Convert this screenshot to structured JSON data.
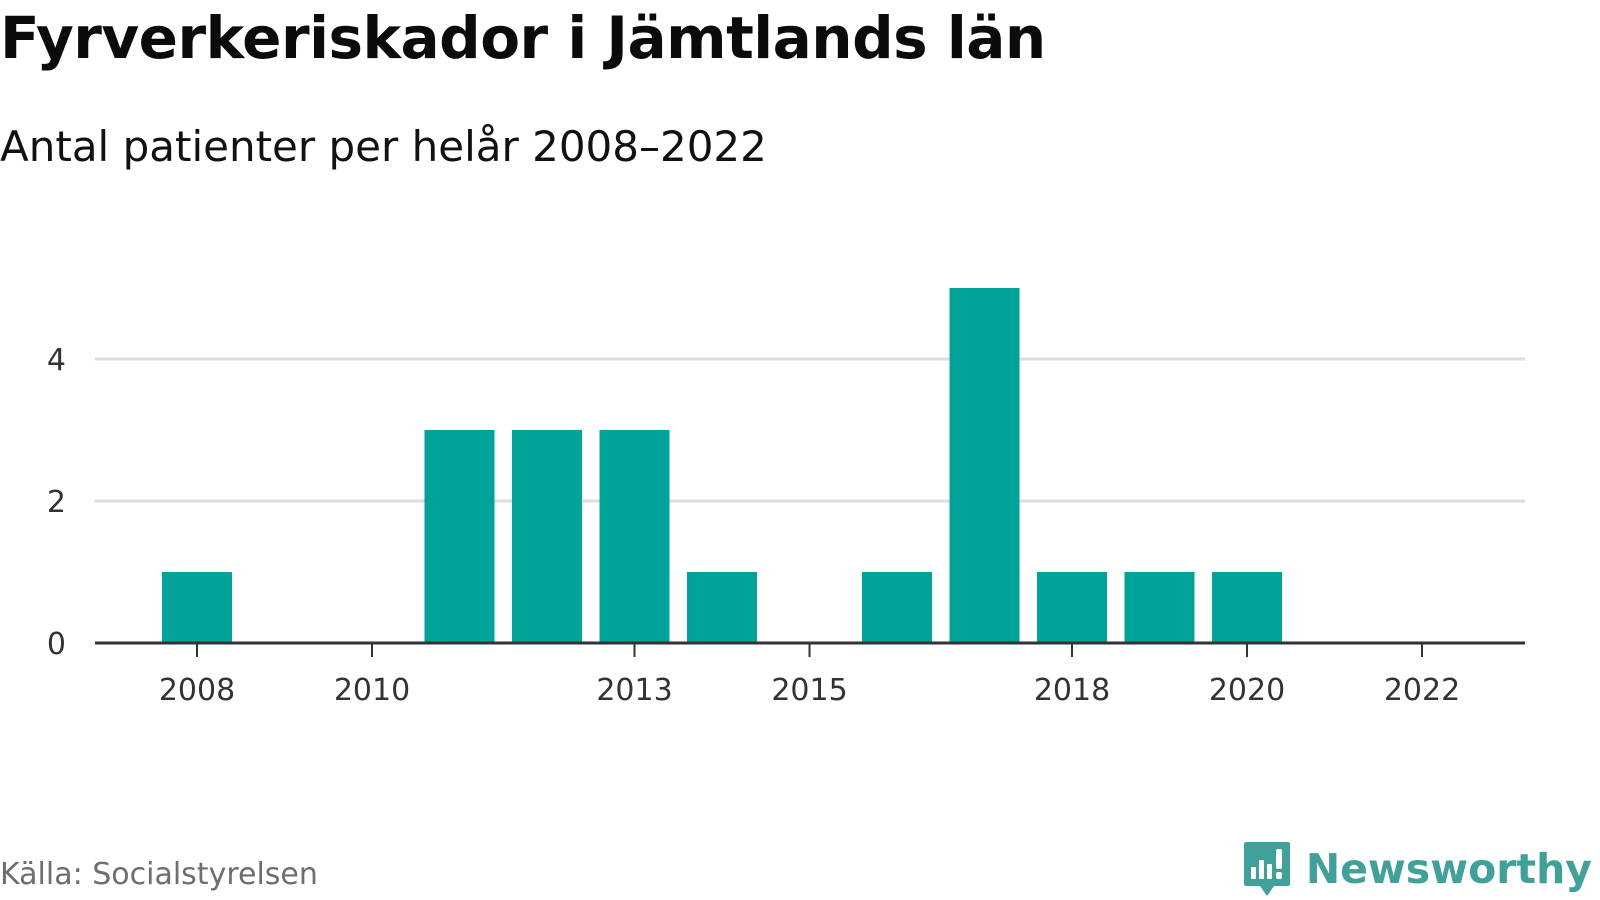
{
  "title": "Fyrverkeriskador i Jämtlands län",
  "subtitle": "Antal patienter per helår 2008–2022",
  "source": "Källa: Socialstyrelsen",
  "brand": {
    "name": "Newsworthy",
    "icon": "newsworthy-logo-icon",
    "color": "#3fa19a"
  },
  "colors": {
    "bar": "#00a39a",
    "grid": "#dddddd",
    "axis": "#333333"
  },
  "chart_data": {
    "type": "bar",
    "x": [
      2008,
      2009,
      2010,
      2011,
      2012,
      2013,
      2014,
      2015,
      2016,
      2017,
      2018,
      2019,
      2020,
      2021,
      2022
    ],
    "values": [
      1,
      0,
      0,
      3,
      3,
      3,
      1,
      0,
      1,
      5,
      1,
      1,
      1,
      0,
      0
    ],
    "xticks": [
      2008,
      2010,
      2013,
      2015,
      2018,
      2020,
      2022
    ],
    "yticks": [
      0,
      2,
      4
    ],
    "ylim": [
      0,
      5
    ],
    "grid": true,
    "legend": false,
    "xlabel": "",
    "ylabel": ""
  }
}
